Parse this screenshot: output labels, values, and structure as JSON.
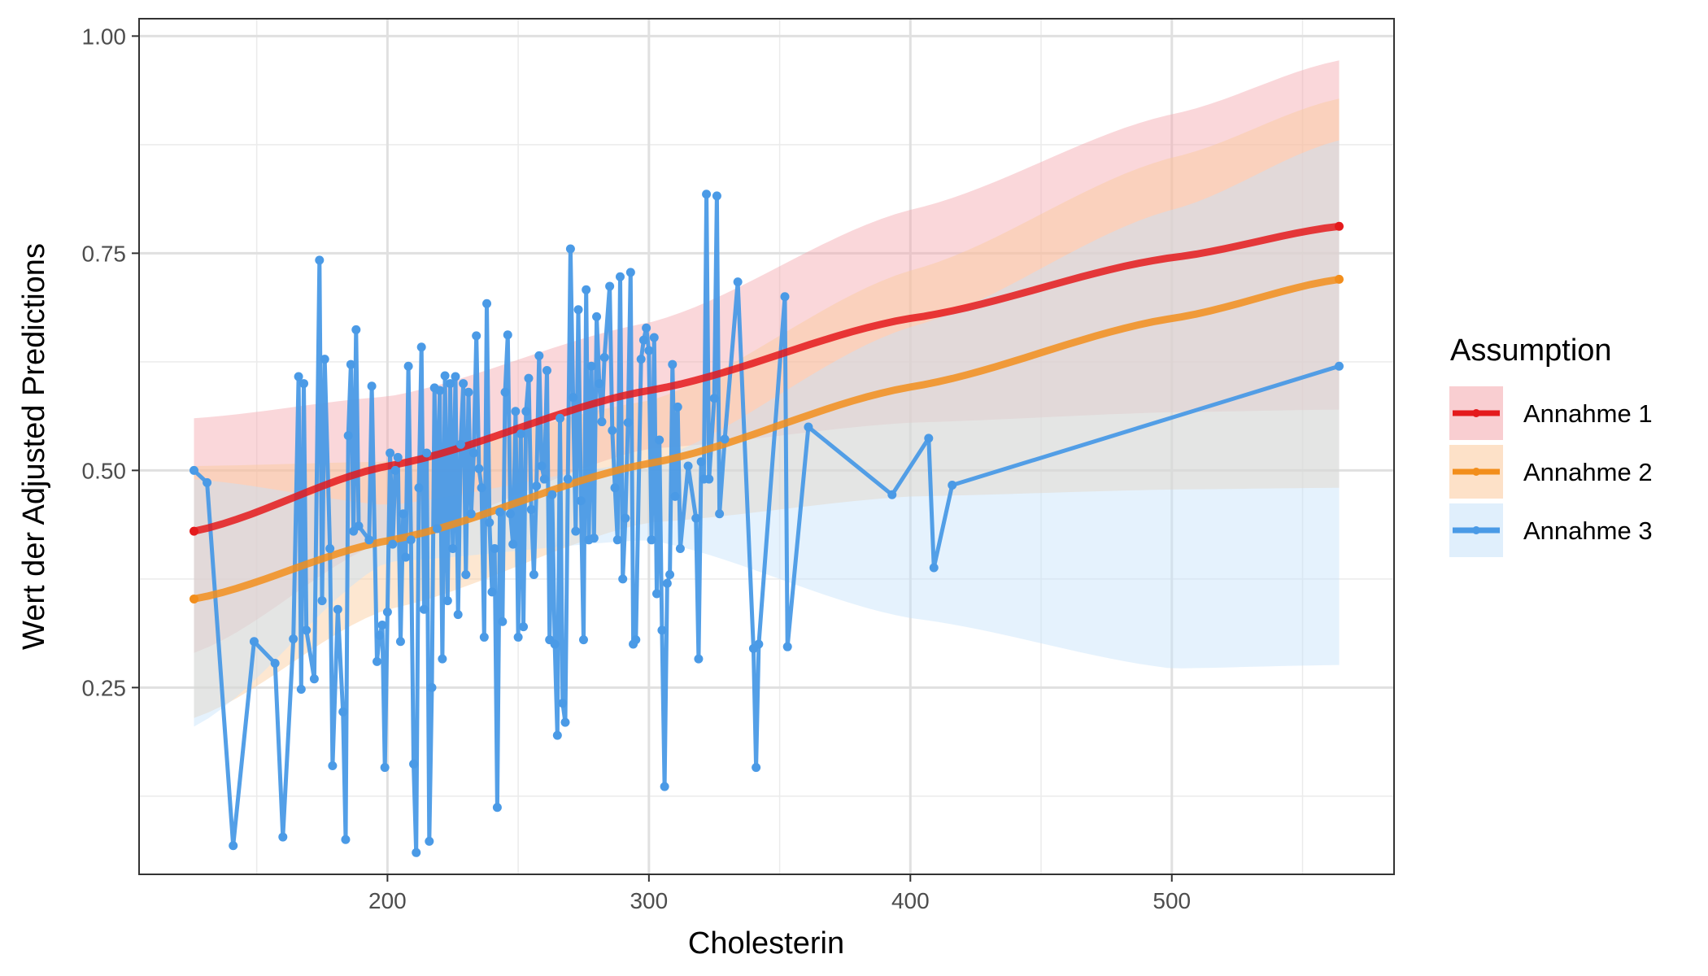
{
  "chart_data": {
    "type": "line",
    "xlabel": "Cholesterin",
    "ylabel": "Wert der Adjusted Predictions",
    "xlim": [
      105,
      585
    ],
    "ylim": [
      0.035,
      1.02
    ],
    "x_ticks": [
      200,
      300,
      400,
      500
    ],
    "x_tick_labels": [
      "200",
      "300",
      "400",
      "500"
    ],
    "y_ticks": [
      0.25,
      0.5,
      0.75,
      1.0
    ],
    "y_tick_labels": [
      "0.25",
      "0.50",
      "0.75",
      "1.00"
    ],
    "x_minor_ticks": [
      150,
      250,
      350,
      450,
      550
    ],
    "y_minor_ticks": [
      0.125,
      0.375,
      0.625,
      0.875
    ],
    "grid": true,
    "legend": {
      "title": "Assumption",
      "placement": "right",
      "entries": [
        "Annahme 1",
        "Annahme 2",
        "Annahme 3"
      ]
    },
    "series": [
      {
        "name": "Annahme 1",
        "color": "#E41A1C",
        "band_color": "#F4A6AC",
        "x": [
          126,
          200,
          300,
          400,
          500,
          564
        ],
        "y": [
          0.43,
          0.505,
          0.592,
          0.675,
          0.745,
          0.781
        ],
        "lower": [
          0.29,
          0.42,
          0.525,
          0.555,
          0.567,
          0.57
        ],
        "upper": [
          0.56,
          0.585,
          0.67,
          0.8,
          0.91,
          0.972
        ]
      },
      {
        "name": "Annahme 2",
        "color": "#F28E1C",
        "band_color": "#FBC99A",
        "x": [
          126,
          200,
          300,
          400,
          500,
          564
        ],
        "y": [
          0.352,
          0.419,
          0.508,
          0.596,
          0.675,
          0.72
        ],
        "lower": [
          0.215,
          0.34,
          0.44,
          0.47,
          0.478,
          0.48
        ],
        "upper": [
          0.505,
          0.51,
          0.58,
          0.73,
          0.86,
          0.928
        ]
      },
      {
        "name": "Annahme 3",
        "color": "#4A9AE6",
        "band_color": "#C6E2FA",
        "points": [
          [
            126,
            0.5
          ],
          [
            131,
            0.486
          ],
          [
            141,
            0.068
          ],
          [
            149,
            0.303
          ],
          [
            157,
            0.278
          ],
          [
            160,
            0.078
          ],
          [
            164,
            0.306
          ],
          [
            166,
            0.608
          ],
          [
            167,
            0.248
          ],
          [
            168,
            0.6
          ],
          [
            169,
            0.316
          ],
          [
            172,
            0.26
          ],
          [
            174,
            0.742
          ],
          [
            175,
            0.35
          ],
          [
            176,
            0.628
          ],
          [
            178,
            0.41
          ],
          [
            179,
            0.16
          ],
          [
            181,
            0.34
          ],
          [
            183,
            0.222
          ],
          [
            184,
            0.075
          ],
          [
            185,
            0.54
          ],
          [
            186,
            0.622
          ],
          [
            187,
            0.43
          ],
          [
            188,
            0.662
          ],
          [
            189,
            0.436
          ],
          [
            193,
            0.42
          ],
          [
            194,
            0.597
          ],
          [
            196,
            0.28
          ],
          [
            197,
            0.31
          ],
          [
            198,
            0.322
          ],
          [
            199,
            0.158
          ],
          [
            200,
            0.337
          ],
          [
            201,
            0.52
          ],
          [
            202,
            0.415
          ],
          [
            203,
            0.5
          ],
          [
            204,
            0.515
          ],
          [
            205,
            0.303
          ],
          [
            206,
            0.45
          ],
          [
            207,
            0.4
          ],
          [
            208,
            0.62
          ],
          [
            209,
            0.42
          ],
          [
            210,
            0.162
          ],
          [
            211,
            0.06
          ],
          [
            212,
            0.48
          ],
          [
            213,
            0.642
          ],
          [
            214,
            0.34
          ],
          [
            215,
            0.52
          ],
          [
            216,
            0.073
          ],
          [
            217,
            0.25
          ],
          [
            218,
            0.595
          ],
          [
            219,
            0.433
          ],
          [
            220,
            0.592
          ],
          [
            221,
            0.283
          ],
          [
            222,
            0.609
          ],
          [
            223,
            0.35
          ],
          [
            224,
            0.6
          ],
          [
            225,
            0.41
          ],
          [
            226,
            0.608
          ],
          [
            227,
            0.334
          ],
          [
            228,
            0.53
          ],
          [
            229,
            0.6
          ],
          [
            230,
            0.38
          ],
          [
            231,
            0.59
          ],
          [
            232,
            0.45
          ],
          [
            233,
            0.52
          ],
          [
            234,
            0.655
          ],
          [
            235,
            0.502
          ],
          [
            236,
            0.48
          ],
          [
            237,
            0.308
          ],
          [
            238,
            0.692
          ],
          [
            239,
            0.44
          ],
          [
            240,
            0.36
          ],
          [
            241,
            0.41
          ],
          [
            242,
            0.112
          ],
          [
            243,
            0.452
          ],
          [
            244,
            0.326
          ],
          [
            245,
            0.59
          ],
          [
            246,
            0.656
          ],
          [
            247,
            0.45
          ],
          [
            248,
            0.415
          ],
          [
            249,
            0.568
          ],
          [
            250,
            0.308
          ],
          [
            251,
            0.542
          ],
          [
            252,
            0.32
          ],
          [
            253,
            0.568
          ],
          [
            254,
            0.606
          ],
          [
            255,
            0.455
          ],
          [
            256,
            0.38
          ],
          [
            257,
            0.482
          ],
          [
            258,
            0.632
          ],
          [
            259,
            0.505
          ],
          [
            260,
            0.49
          ],
          [
            261,
            0.615
          ],
          [
            262,
            0.305
          ],
          [
            263,
            0.472
          ],
          [
            264,
            0.3
          ],
          [
            265,
            0.195
          ],
          [
            266,
            0.56
          ],
          [
            267,
            0.232
          ],
          [
            268,
            0.21
          ],
          [
            269,
            0.49
          ],
          [
            270,
            0.755
          ],
          [
            271,
            0.584
          ],
          [
            272,
            0.43
          ],
          [
            273,
            0.685
          ],
          [
            274,
            0.465
          ],
          [
            275,
            0.305
          ],
          [
            276,
            0.708
          ],
          [
            277,
            0.42
          ],
          [
            278,
            0.62
          ],
          [
            279,
            0.422
          ],
          [
            280,
            0.677
          ],
          [
            281,
            0.6
          ],
          [
            282,
            0.556
          ],
          [
            283,
            0.63
          ],
          [
            285,
            0.712
          ],
          [
            286,
            0.546
          ],
          [
            287,
            0.48
          ],
          [
            288,
            0.42
          ],
          [
            289,
            0.723
          ],
          [
            290,
            0.375
          ],
          [
            291,
            0.445
          ],
          [
            292,
            0.555
          ],
          [
            293,
            0.728
          ],
          [
            294,
            0.3
          ],
          [
            295,
            0.305
          ],
          [
            297,
            0.628
          ],
          [
            298,
            0.65
          ],
          [
            299,
            0.664
          ],
          [
            300,
            0.638
          ],
          [
            301,
            0.42
          ],
          [
            302,
            0.653
          ],
          [
            303,
            0.358
          ],
          [
            304,
            0.535
          ],
          [
            305,
            0.316
          ],
          [
            306,
            0.136
          ],
          [
            307,
            0.37
          ],
          [
            308,
            0.38
          ],
          [
            309,
            0.622
          ],
          [
            310,
            0.47
          ],
          [
            311,
            0.573
          ],
          [
            312,
            0.41
          ],
          [
            315,
            0.505
          ],
          [
            318,
            0.445
          ],
          [
            319,
            0.283
          ],
          [
            320,
            0.51
          ],
          [
            321,
            0.49
          ],
          [
            322,
            0.818
          ],
          [
            323,
            0.49
          ],
          [
            325,
            0.583
          ],
          [
            326,
            0.816
          ],
          [
            327,
            0.45
          ],
          [
            329,
            0.536
          ],
          [
            334,
            0.717
          ],
          [
            340,
            0.295
          ],
          [
            341,
            0.158
          ],
          [
            342,
            0.3
          ],
          [
            352,
            0.7
          ],
          [
            353,
            0.297
          ],
          [
            361,
            0.55
          ],
          [
            393,
            0.472
          ],
          [
            407,
            0.537
          ],
          [
            409,
            0.388
          ],
          [
            416,
            0.483
          ],
          [
            564,
            0.62
          ]
        ],
        "x": [
          126,
          200,
          300,
          400,
          500,
          564
        ],
        "lower": [
          0.205,
          0.395,
          0.42,
          0.33,
          0.272,
          0.276
        ],
        "upper": [
          0.49,
          0.46,
          0.51,
          0.665,
          0.8,
          0.88
        ]
      }
    ]
  }
}
